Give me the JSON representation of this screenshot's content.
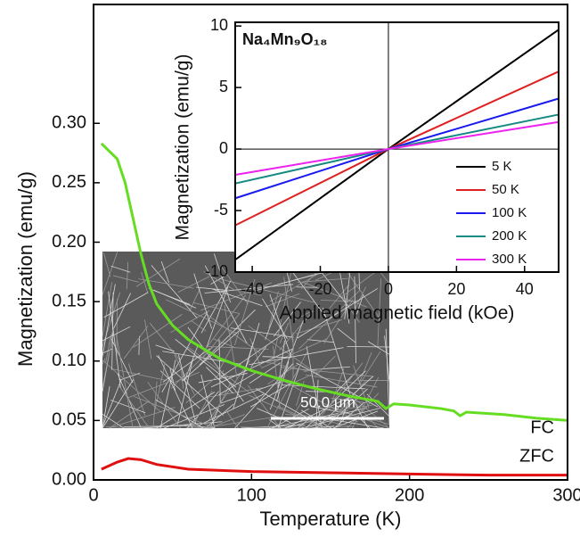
{
  "chart_data": [
    {
      "type": "line",
      "xlabel": "Temperature (K)",
      "ylabel": "Magnetization (emu/g)",
      "xlim": [
        0,
        300
      ],
      "ylim": [
        0,
        0.4
      ],
      "xticks": [
        0,
        100,
        200,
        300
      ],
      "yticks": [
        {
          "value": 0,
          "label": "0.00"
        },
        {
          "value": 0.05,
          "label": "0.05"
        },
        {
          "value": 0.1,
          "label": "0.10"
        },
        {
          "value": 0.15,
          "label": "0.15"
        },
        {
          "value": 0.2,
          "label": "0.20"
        },
        {
          "value": 0.25,
          "label": "0.25"
        },
        {
          "value": 0.3,
          "label": "0.30"
        }
      ],
      "image_scale_label": "50.0 μm",
      "series": [
        {
          "name": "FC",
          "color": "#66dd22",
          "x": [
            5,
            15,
            20,
            25,
            30,
            35,
            40,
            50,
            60,
            80,
            100,
            120,
            140,
            160,
            180,
            185,
            190,
            200,
            220,
            228,
            232,
            236,
            260,
            280,
            300
          ],
          "values": [
            0.283,
            0.27,
            0.25,
            0.22,
            0.19,
            0.165,
            0.148,
            0.13,
            0.118,
            0.102,
            0.092,
            0.084,
            0.077,
            0.071,
            0.066,
            0.06,
            0.064,
            0.063,
            0.06,
            0.058,
            0.054,
            0.057,
            0.055,
            0.052,
            0.05
          ]
        },
        {
          "name": "ZFC",
          "color": "#e01010",
          "x": [
            5,
            15,
            22,
            30,
            40,
            60,
            100,
            150,
            200,
            250,
            300
          ],
          "values": [
            0.009,
            0.015,
            0.018,
            0.017,
            0.013,
            0.009,
            0.007,
            0.006,
            0.005,
            0.004,
            0.004
          ]
        }
      ]
    },
    {
      "type": "line",
      "title": "Na₄Mn₉O₁₈",
      "xlabel": "Applied magnetic field (kOe)",
      "ylabel": "Magnetization (emu/g)",
      "xlim": [
        -45,
        50
      ],
      "ylim": [
        -10,
        10.3
      ],
      "xticks": [
        -40,
        -20,
        0,
        20,
        40
      ],
      "yticks": [
        -10,
        -5,
        0,
        5,
        10
      ],
      "legend": "lower right",
      "x": [
        -45,
        0,
        50
      ],
      "series": [
        {
          "name": "5 K",
          "color": "#000000",
          "values": [
            -9.0,
            0,
            9.7
          ]
        },
        {
          "name": "50 K",
          "color": "#e02020",
          "values": [
            -6.2,
            0,
            6.3
          ]
        },
        {
          "name": "100 K",
          "color": "#1a1aee",
          "values": [
            -4.0,
            0,
            4.1
          ]
        },
        {
          "name": "200 K",
          "color": "#158a80",
          "values": [
            -2.8,
            0,
            2.8
          ]
        },
        {
          "name": "300 K",
          "color": "#ee22ee",
          "values": [
            -2.1,
            0,
            2.2
          ]
        }
      ]
    }
  ]
}
